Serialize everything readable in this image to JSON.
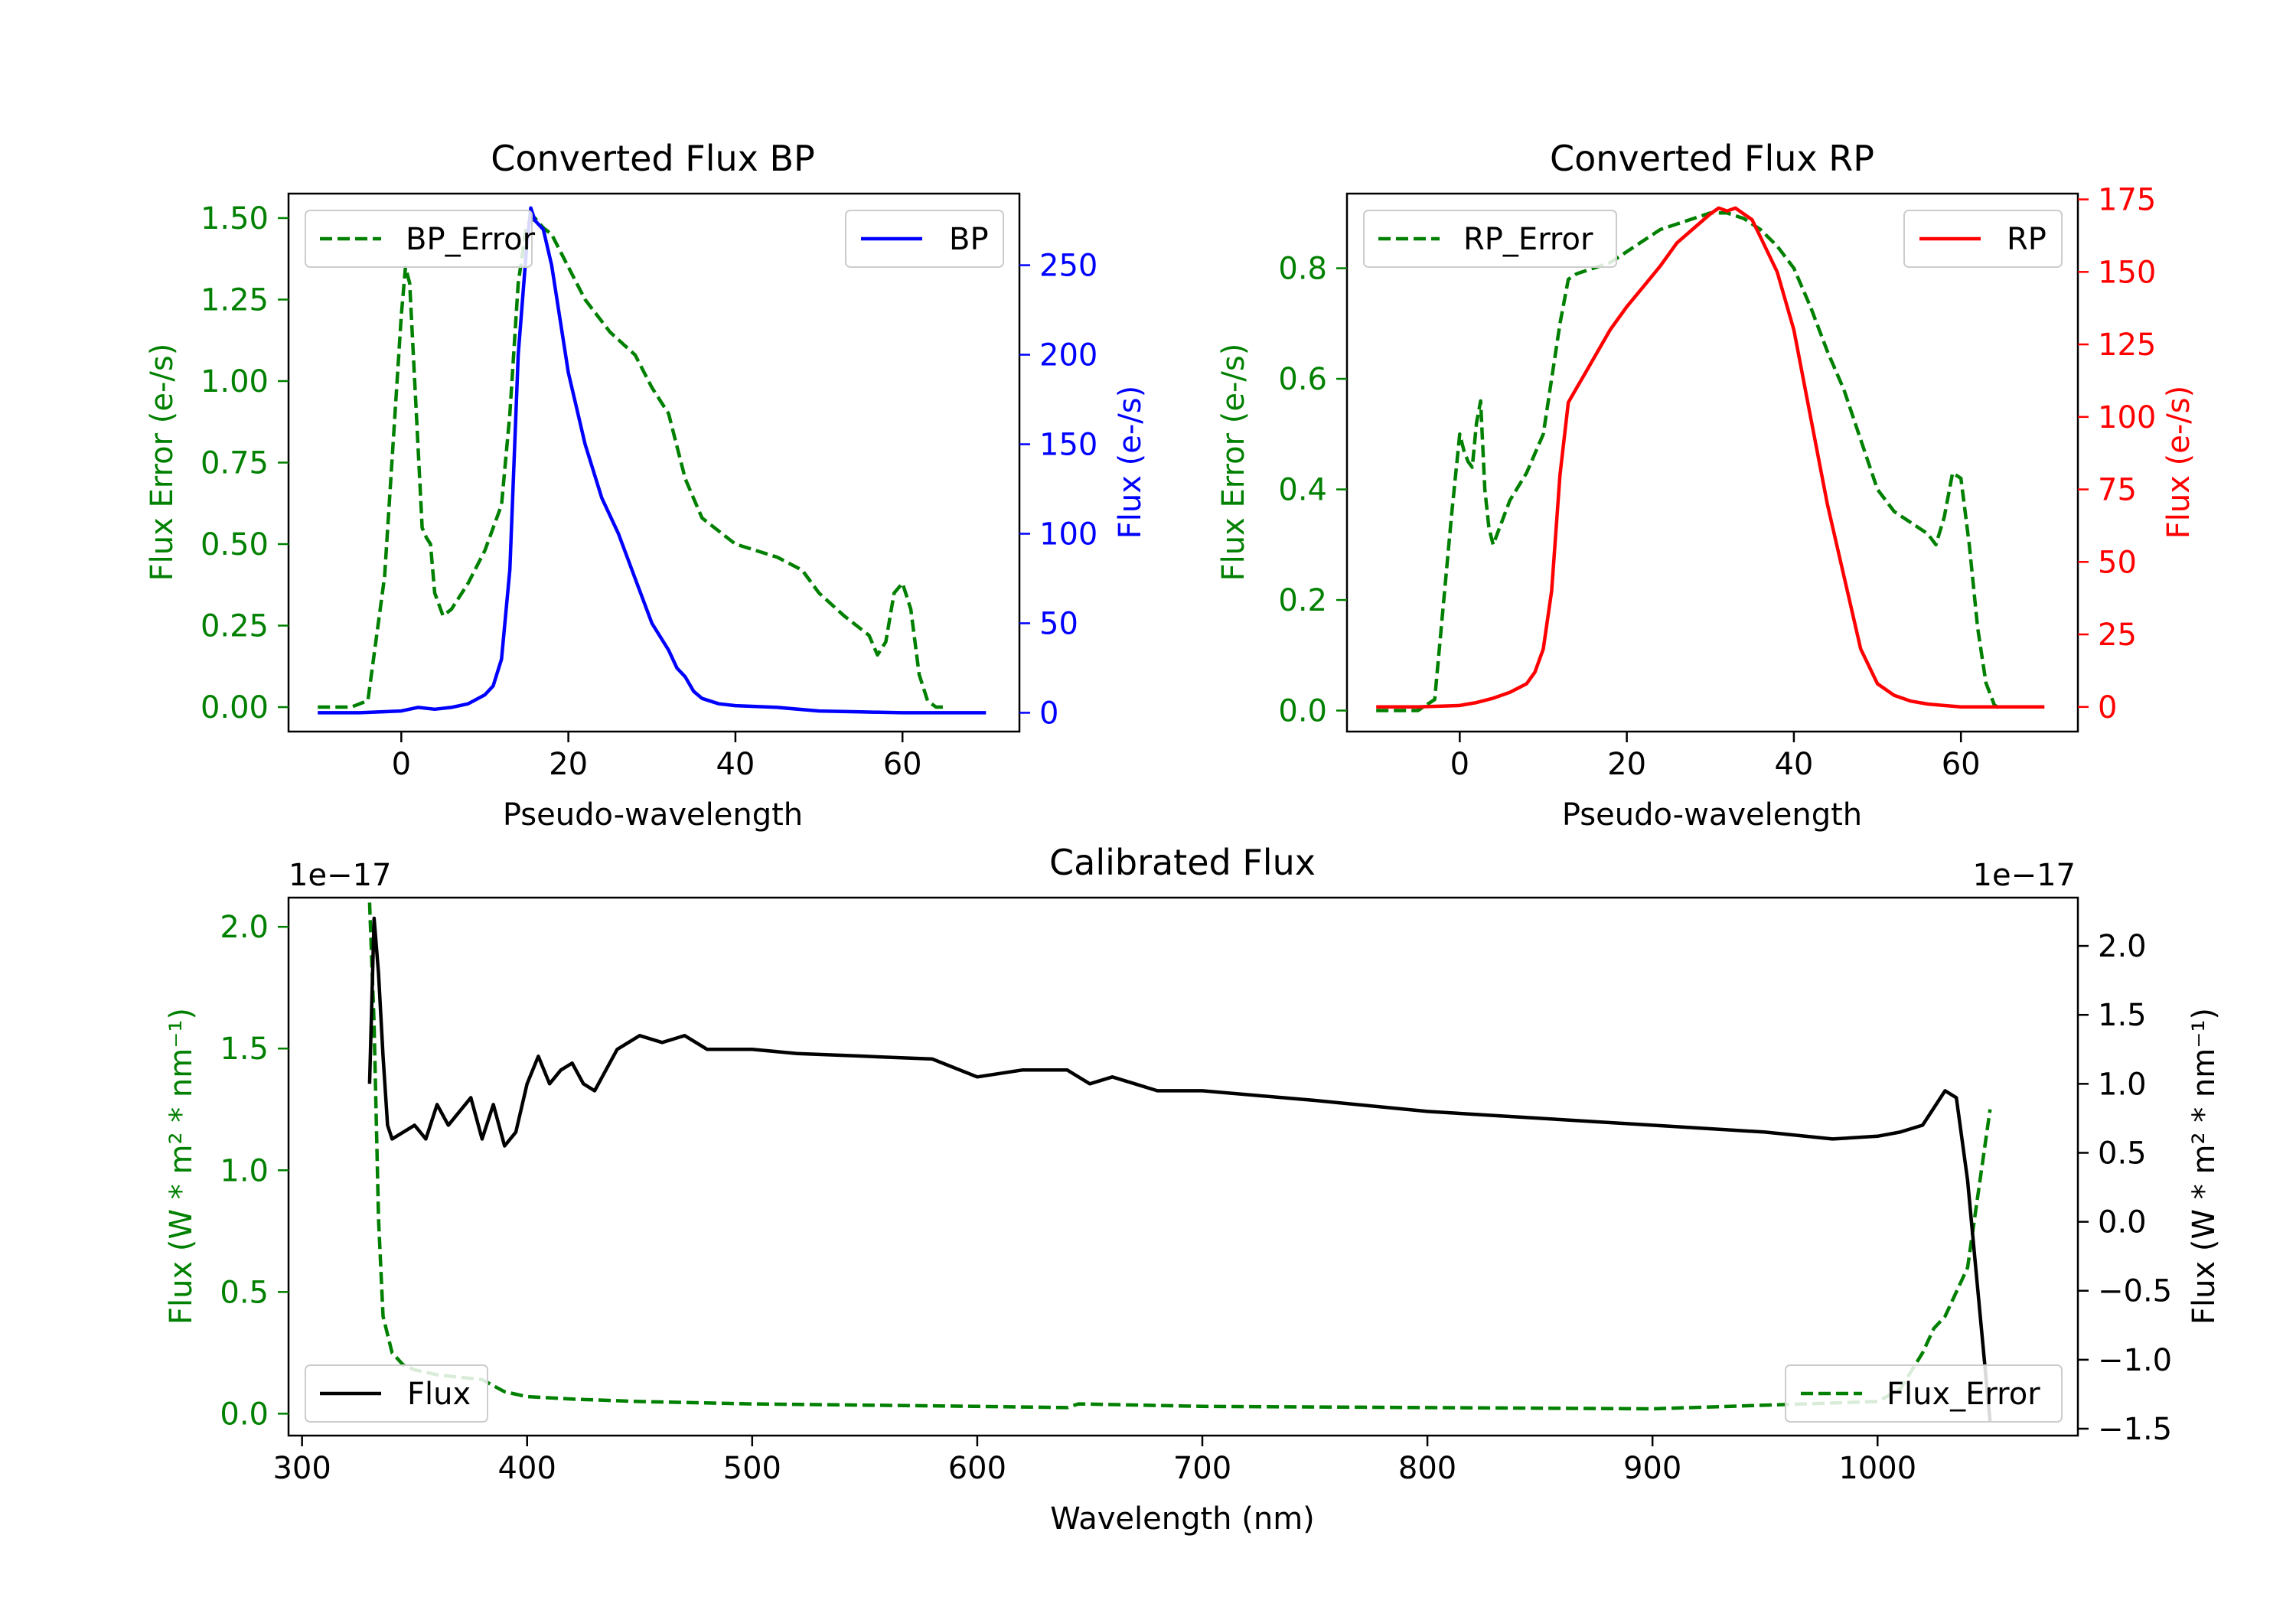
{
  "colors": {
    "green": "#008000",
    "blue": "#0000ff",
    "red": "#ff0000",
    "black": "#000000"
  },
  "chart_data": [
    {
      "id": "bp",
      "type": "line",
      "title": "Converted Flux BP",
      "xlabel": "Pseudo-wavelength",
      "ylabel_left": "Flux Error (e-/s)",
      "ylabel_right": "Flux (e-/s)",
      "xlim": [
        -13.5,
        74
      ],
      "ylim_left": [
        -0.075,
        1.575
      ],
      "ylim_right": [
        -10.5,
        290
      ],
      "xticks": [
        0,
        20,
        40,
        60
      ],
      "xtick_labels": [
        "0",
        "20",
        "40",
        "60"
      ],
      "yticks_left": [
        0,
        0.25,
        0.5,
        0.75,
        1.0,
        1.25,
        1.5
      ],
      "ytick_labels_left": [
        "0.00",
        "0.25",
        "0.50",
        "0.75",
        "1.00",
        "1.25",
        "1.50"
      ],
      "yticks_right": [
        0,
        50,
        100,
        150,
        200,
        250
      ],
      "ytick_labels_right": [
        "0",
        "50",
        "100",
        "150",
        "200",
        "250"
      ],
      "legend_left": "BP_Error",
      "legend_right": "BP",
      "series": [
        {
          "name": "BP_Error",
          "axis": "left",
          "style": "dashed",
          "color": "#008000",
          "x": [
            -10,
            -6,
            -4,
            -2,
            0,
            0.5,
            1,
            2,
            2.5,
            3,
            3.5,
            4,
            5,
            6,
            8,
            10,
            12,
            13,
            14,
            15,
            16,
            17,
            18,
            20,
            22,
            25,
            28,
            30,
            32,
            34,
            36,
            40,
            45,
            48,
            50,
            53,
            56,
            57,
            58,
            59,
            60,
            61,
            62,
            63,
            64,
            65
          ],
          "y": [
            0,
            0,
            0.02,
            0.4,
            1.2,
            1.35,
            1.3,
            0.8,
            0.55,
            0.52,
            0.5,
            0.35,
            0.28,
            0.3,
            0.38,
            0.48,
            0.62,
            0.9,
            1.3,
            1.48,
            1.5,
            1.47,
            1.45,
            1.35,
            1.25,
            1.15,
            1.08,
            0.98,
            0.9,
            0.7,
            0.58,
            0.5,
            0.46,
            0.42,
            0.35,
            0.28,
            0.22,
            0.16,
            0.2,
            0.35,
            0.38,
            0.3,
            0.1,
            0.02,
            0,
            0
          ]
        },
        {
          "name": "BP",
          "axis": "right",
          "style": "solid",
          "color": "#0000ff",
          "x": [
            -10,
            -5,
            0,
            2,
            4,
            6,
            8,
            10,
            11,
            12,
            13,
            14,
            15,
            15.5,
            16,
            17,
            18,
            19,
            20,
            22,
            24,
            26,
            28,
            30,
            32,
            33,
            34,
            35,
            36,
            38,
            40,
            45,
            50,
            55,
            60,
            65,
            70
          ],
          "y": [
            0,
            0,
            1,
            3,
            2,
            3,
            5,
            10,
            15,
            30,
            80,
            200,
            260,
            282,
            275,
            270,
            250,
            220,
            190,
            150,
            120,
            100,
            75,
            50,
            35,
            25,
            20,
            12,
            8,
            5,
            4,
            3,
            1,
            0.5,
            0,
            0,
            0
          ]
        }
      ]
    },
    {
      "id": "rp",
      "type": "line",
      "title": "Converted Flux RP",
      "xlabel": "Pseudo-wavelength",
      "ylabel_left": "Flux Error (e-/s)",
      "ylabel_right": "Flux (e-/s)",
      "xlim": [
        -13.5,
        74
      ],
      "ylim_left": [
        -0.038,
        0.935
      ],
      "ylim_right": [
        -8.5,
        177
      ],
      "xticks": [
        0,
        20,
        40,
        60
      ],
      "xtick_labels": [
        "0",
        "20",
        "40",
        "60"
      ],
      "yticks_left": [
        0,
        0.2,
        0.4,
        0.6,
        0.8
      ],
      "ytick_labels_left": [
        "0.0",
        "0.2",
        "0.4",
        "0.6",
        "0.8"
      ],
      "yticks_right": [
        0,
        25,
        50,
        75,
        100,
        125,
        150,
        175
      ],
      "ytick_labels_right": [
        "0",
        "25",
        "50",
        "75",
        "100",
        "125",
        "150",
        "175"
      ],
      "legend_left": "RP_Error",
      "legend_right": "RP",
      "series": [
        {
          "name": "RP_Error",
          "axis": "left",
          "style": "dashed",
          "color": "#008000",
          "x": [
            -10,
            -5,
            -3,
            -1,
            0,
            0.5,
            1,
            1.5,
            2,
            2.5,
            3,
            3.5,
            4,
            5,
            6,
            8,
            10,
            12,
            13,
            14,
            16,
            18,
            20,
            22,
            24,
            26,
            28,
            30,
            32,
            34,
            36,
            38,
            40,
            42,
            44,
            46,
            48,
            50,
            52,
            54,
            55,
            56,
            57,
            58,
            59,
            60,
            61,
            62,
            63,
            64,
            65
          ],
          "y": [
            0,
            0,
            0.02,
            0.35,
            0.5,
            0.47,
            0.45,
            0.44,
            0.52,
            0.56,
            0.4,
            0.33,
            0.3,
            0.34,
            0.38,
            0.43,
            0.5,
            0.7,
            0.78,
            0.79,
            0.8,
            0.81,
            0.83,
            0.85,
            0.87,
            0.88,
            0.89,
            0.9,
            0.9,
            0.89,
            0.87,
            0.84,
            0.8,
            0.73,
            0.65,
            0.58,
            0.49,
            0.4,
            0.36,
            0.34,
            0.33,
            0.32,
            0.3,
            0.35,
            0.43,
            0.42,
            0.3,
            0.15,
            0.05,
            0.01,
            0
          ]
        },
        {
          "name": "RP",
          "axis": "right",
          "style": "solid",
          "color": "#ff0000",
          "x": [
            -10,
            -5,
            0,
            2,
            4,
            6,
            8,
            9,
            10,
            11,
            12,
            13,
            14,
            15,
            16,
            18,
            20,
            22,
            24,
            26,
            28,
            30,
            31,
            32,
            33,
            34,
            35,
            36,
            38,
            40,
            42,
            44,
            46,
            48,
            50,
            52,
            54,
            56,
            60,
            65,
            70
          ],
          "y": [
            0,
            0,
            0.5,
            1.5,
            3,
            5,
            8,
            12,
            20,
            40,
            80,
            105,
            110,
            115,
            120,
            130,
            138,
            145,
            152,
            160,
            165,
            170,
            172,
            171,
            172,
            170,
            168,
            162,
            150,
            130,
            100,
            70,
            45,
            20,
            8,
            4,
            2,
            1,
            0,
            0,
            0
          ]
        }
      ]
    },
    {
      "id": "cal",
      "type": "line",
      "title": "Calibrated Flux",
      "xlabel": "Wavelength (nm)",
      "ylabel_left": "Flux (W * m² * nm⁻¹)",
      "ylabel_right": "Flux (W * m² * nm⁻¹)",
      "offset_left": "1e−17",
      "offset_right": "1e−17",
      "xlim": [
        294,
        1089
      ],
      "ylim_left": [
        -0.09,
        2.12
      ],
      "ylim_right": [
        -1.55,
        2.35
      ],
      "xticks": [
        300,
        400,
        500,
        600,
        700,
        800,
        900,
        1000
      ],
      "xtick_labels": [
        "300",
        "400",
        "500",
        "600",
        "700",
        "800",
        "900",
        "1000"
      ],
      "yticks_left": [
        0,
        0.5,
        1.0,
        1.5,
        2.0
      ],
      "ytick_labels_left": [
        "0.0",
        "0.5",
        "1.0",
        "1.5",
        "2.0"
      ],
      "yticks_right": [
        -1.5,
        -1.0,
        -0.5,
        0,
        0.5,
        1.0,
        1.5,
        2.0
      ],
      "ytick_labels_right": [
        "−1.5",
        "−1.0",
        "−0.5",
        "0.0",
        "0.5",
        "1.0",
        "1.5",
        "2.0"
      ],
      "legend_left": "Flux",
      "legend_right": "Flux_Error",
      "series": [
        {
          "name": "Flux_Error",
          "axis": "left",
          "style": "dashed",
          "color": "#008000",
          "x": [
            330,
            332,
            334,
            336,
            340,
            345,
            350,
            360,
            370,
            380,
            390,
            400,
            420,
            450,
            500,
            550,
            600,
            640,
            645,
            700,
            800,
            900,
            1000,
            1010,
            1020,
            1025,
            1030,
            1040,
            1050
          ],
          "y": [
            2.1,
            1.6,
            0.8,
            0.4,
            0.25,
            0.2,
            0.18,
            0.16,
            0.15,
            0.14,
            0.09,
            0.07,
            0.06,
            0.05,
            0.04,
            0.035,
            0.03,
            0.025,
            0.04,
            0.03,
            0.025,
            0.02,
            0.05,
            0.1,
            0.25,
            0.35,
            0.4,
            0.6,
            1.25
          ]
        },
        {
          "name": "Flux",
          "axis": "right",
          "style": "solid",
          "color": "#000000",
          "x": [
            330,
            332,
            334,
            336,
            338,
            340,
            345,
            350,
            355,
            360,
            365,
            370,
            375,
            380,
            385,
            390,
            395,
            400,
            405,
            410,
            415,
            420,
            425,
            430,
            435,
            440,
            450,
            460,
            470,
            480,
            500,
            520,
            550,
            580,
            600,
            620,
            640,
            650,
            660,
            670,
            680,
            700,
            750,
            800,
            850,
            900,
            950,
            980,
            1000,
            1010,
            1020,
            1030,
            1035,
            1040,
            1050
          ],
          "y": [
            1.0,
            2.2,
            1.8,
            1.2,
            0.7,
            0.6,
            0.65,
            0.7,
            0.6,
            0.85,
            0.7,
            0.8,
            0.9,
            0.6,
            0.85,
            0.55,
            0.65,
            1.0,
            1.2,
            1.0,
            1.1,
            1.15,
            1.0,
            0.95,
            1.1,
            1.25,
            1.35,
            1.3,
            1.35,
            1.25,
            1.25,
            1.22,
            1.2,
            1.18,
            1.05,
            1.1,
            1.1,
            1.0,
            1.05,
            1.0,
            0.95,
            0.95,
            0.88,
            0.8,
            0.75,
            0.7,
            0.65,
            0.6,
            0.62,
            0.65,
            0.7,
            0.95,
            0.9,
            0.3,
            -1.45
          ]
        }
      ]
    }
  ]
}
